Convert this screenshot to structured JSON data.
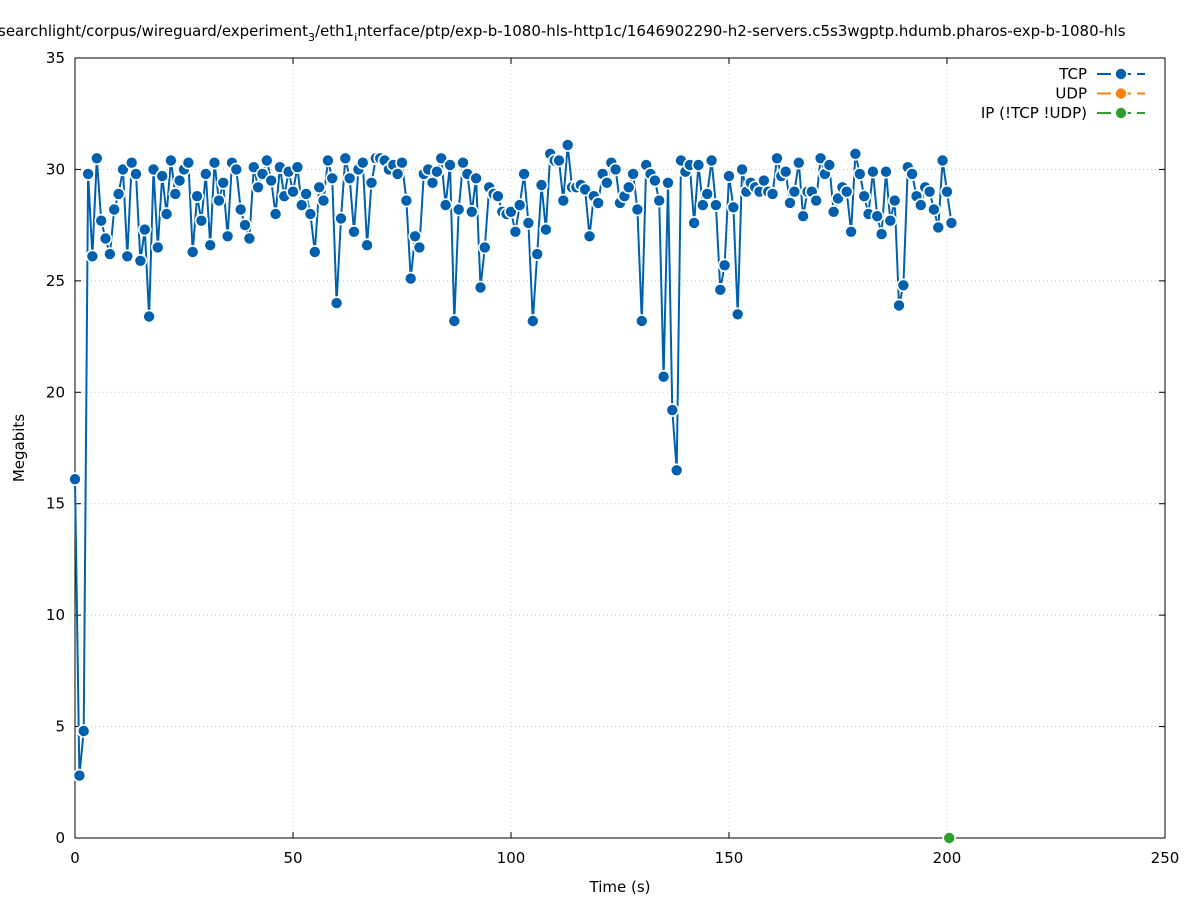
{
  "chart_data": {
    "type": "line",
    "title": "searchlight/corpus/wireguard/experiment_3/eth1_interface/ptp/exp-b-1080-hls-http1c/1646902290-h2-servers.c5s3wgptp.hdumb.pharos-exp-b-1080-hls",
    "title_parts": {
      "p1": "searchlight/corpus/wireguard/experiment",
      "sub1": "3",
      "p2": "/eth1",
      "sub2": "i",
      "p3": "nterface/ptp/exp-b-1080-hls-http1c/1646902290-h2-servers.c5s3wgptp.hdumb.pharos-exp-b-1080-hls"
    },
    "xlabel": "Time (s)",
    "ylabel": "Megabits",
    "xlim": [
      0,
      250
    ],
    "ylim": [
      0,
      35
    ],
    "xticks": [
      0,
      50,
      100,
      150,
      200,
      250
    ],
    "yticks": [
      0,
      5,
      10,
      15,
      20,
      25,
      30,
      35
    ],
    "grid": true,
    "legend_position": "top-right",
    "series": [
      {
        "name": "TCP",
        "color": "#0060ad",
        "x": [
          0,
          1,
          2,
          3,
          4,
          5,
          6,
          7,
          8,
          9,
          10,
          11,
          12,
          13,
          14,
          15,
          16,
          17,
          18,
          19,
          20,
          21,
          22,
          23,
          24,
          25,
          26,
          27,
          28,
          29,
          30,
          31,
          32,
          33,
          34,
          35,
          36,
          37,
          38,
          39,
          40,
          41,
          42,
          43,
          44,
          45,
          46,
          47,
          48,
          49,
          50,
          51,
          52,
          53,
          54,
          55,
          56,
          57,
          58,
          59,
          60,
          61,
          62,
          63,
          64,
          65,
          66,
          67,
          68,
          69,
          70,
          71,
          72,
          73,
          74,
          75,
          76,
          77,
          78,
          79,
          80,
          81,
          82,
          83,
          84,
          85,
          86,
          87,
          88,
          89,
          90,
          91,
          92,
          93,
          94,
          95,
          96,
          97,
          98,
          99,
          100,
          101,
          102,
          103,
          104,
          105,
          106,
          107,
          108,
          109,
          110,
          111,
          112,
          113,
          114,
          115,
          116,
          117,
          118,
          119,
          120,
          121,
          122,
          123,
          124,
          125,
          126,
          127,
          128,
          129,
          130,
          131,
          132,
          133,
          134,
          135,
          136,
          137,
          138,
          139,
          140,
          141,
          142,
          143,
          144,
          145,
          146,
          147,
          148,
          149,
          150,
          151,
          152,
          153,
          154,
          155,
          156,
          157,
          158,
          159,
          160,
          161,
          162,
          163,
          164,
          165,
          166,
          167,
          168,
          169,
          170,
          171,
          172,
          173,
          174,
          175,
          176,
          177,
          178,
          179,
          180,
          181,
          182,
          183,
          184,
          185,
          186,
          187,
          188,
          189,
          190,
          191,
          192,
          193,
          194,
          195,
          196,
          197,
          198,
          199,
          200,
          201
        ],
        "values": [
          16.1,
          2.8,
          4.8,
          29.8,
          26.1,
          30.5,
          27.7,
          26.9,
          26.2,
          28.2,
          28.9,
          30.0,
          26.1,
          30.3,
          29.8,
          25.9,
          27.3,
          23.4,
          30.0,
          26.5,
          29.7,
          28.0,
          30.4,
          28.9,
          29.5,
          30.0,
          30.3,
          26.3,
          28.8,
          27.7,
          29.8,
          26.6,
          30.3,
          28.6,
          29.4,
          27.0,
          30.3,
          30.0,
          28.2,
          27.5,
          26.9,
          30.1,
          29.2,
          29.8,
          30.4,
          29.5,
          28.0,
          30.1,
          28.8,
          29.9,
          29.0,
          30.1,
          28.4,
          28.9,
          28.0,
          26.3,
          29.2,
          28.6,
          30.4,
          29.6,
          24.0,
          27.8,
          30.5,
          29.6,
          27.2,
          30.0,
          30.3,
          26.6,
          29.4,
          30.5,
          30.5,
          30.4,
          30.0,
          30.2,
          29.8,
          30.3,
          28.6,
          25.1,
          27.0,
          26.5,
          29.8,
          30.0,
          29.4,
          29.9,
          30.5,
          28.4,
          30.2,
          23.2,
          28.2,
          30.3,
          29.8,
          28.1,
          29.6,
          24.7,
          26.5,
          29.2,
          28.9,
          28.8,
          28.1,
          28.0,
          28.1,
          27.2,
          28.4,
          29.8,
          27.6,
          23.2,
          26.2,
          29.3,
          27.3,
          30.7,
          30.4,
          30.4,
          28.6,
          31.1,
          29.2,
          29.2,
          29.3,
          29.1,
          27.0,
          28.8,
          28.5,
          29.8,
          29.4,
          30.3,
          30.0,
          28.5,
          28.8,
          29.2,
          29.8,
          28.2,
          23.2,
          30.2,
          29.8,
          29.5,
          28.6,
          20.7,
          29.4,
          19.2,
          16.5,
          30.4,
          29.9,
          30.2,
          27.6,
          30.2,
          28.4,
          28.9,
          30.4,
          28.4,
          24.6,
          25.7,
          29.7,
          28.3,
          23.5,
          30.0,
          29.0,
          29.4,
          29.2,
          29.0,
          29.5,
          29.0,
          28.9,
          30.5,
          29.7,
          29.9,
          28.5,
          29.0,
          30.3,
          27.9,
          29.0,
          29.0,
          28.6,
          30.5,
          29.8,
          30.2,
          28.1,
          28.7,
          29.2,
          29.0,
          27.2,
          30.7,
          29.8,
          28.8,
          28.0,
          29.9,
          27.9,
          27.1,
          29.9,
          27.7,
          28.6,
          23.9,
          24.8,
          30.1,
          29.8,
          28.8,
          28.4,
          29.2,
          29.0,
          28.2,
          27.4,
          30.4,
          29.0,
          27.6
        ]
      },
      {
        "name": "UDP",
        "color": "#ff7f0e",
        "x": [],
        "values": []
      },
      {
        "name": "IP (!TCP  !UDP)",
        "color": "#2ca02c",
        "x": [
          200.5
        ],
        "values": [
          0
        ]
      }
    ]
  }
}
